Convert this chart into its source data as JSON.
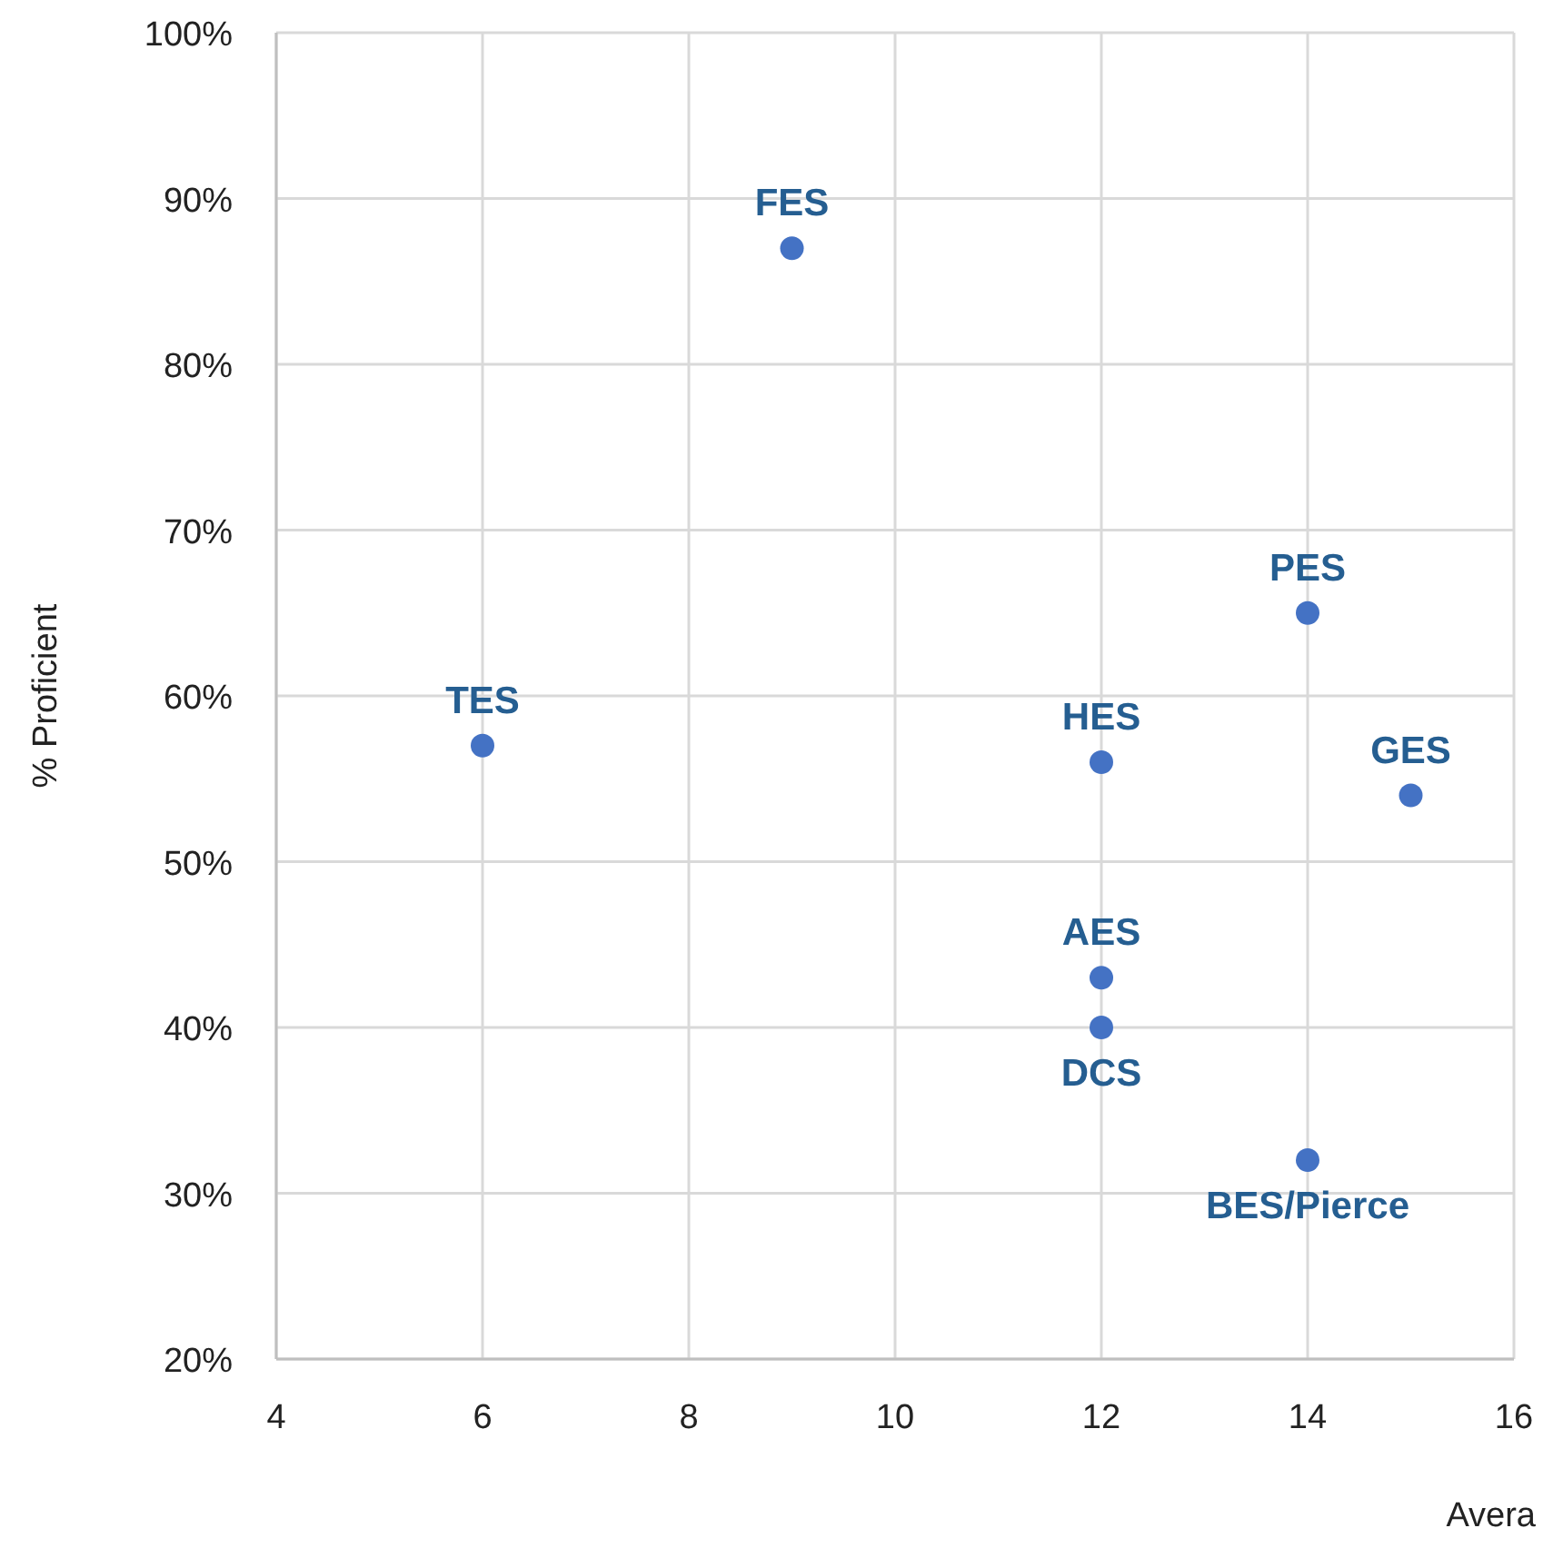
{
  "chart_data": {
    "type": "scatter",
    "xlabel": "Avera",
    "ylabel": "% Proficient",
    "x": [
      6,
      9,
      14,
      12,
      15,
      12,
      12,
      14
    ],
    "values": [
      57,
      87,
      65,
      56,
      54,
      43,
      40,
      32
    ],
    "color": "#4472c4",
    "marker": "circle",
    "grid": true,
    "xlim": [
      4,
      16
    ],
    "xticks": [
      4,
      6,
      8,
      10,
      12,
      14,
      16
    ],
    "ylim": [
      20,
      100
    ],
    "yticks": [
      {
        "value": 20,
        "label": "20%"
      },
      {
        "value": 30,
        "label": "30%"
      },
      {
        "value": 40,
        "label": "40%"
      },
      {
        "value": 50,
        "label": "50%"
      },
      {
        "value": 60,
        "label": "60%"
      },
      {
        "value": 70,
        "label": "70%"
      },
      {
        "value": 80,
        "label": "80%"
      },
      {
        "value": 90,
        "label": "90%"
      },
      {
        "value": 100,
        "label": "100%"
      }
    ],
    "annotations": [
      {
        "text": "TES",
        "x": 6,
        "y": 57
      },
      {
        "text": "FES",
        "x": 9,
        "y": 87
      },
      {
        "text": "PES",
        "x": 14,
        "y": 65
      },
      {
        "text": "HES",
        "x": 12,
        "y": 56
      },
      {
        "text": "GES",
        "x": 15,
        "y": 54
      },
      {
        "text": "AES",
        "x": 12,
        "y": 43
      },
      {
        "text": "DCS",
        "x": 12,
        "y": 40
      },
      {
        "text": "BES/Pierce",
        "x": 14,
        "y": 32
      }
    ]
  }
}
